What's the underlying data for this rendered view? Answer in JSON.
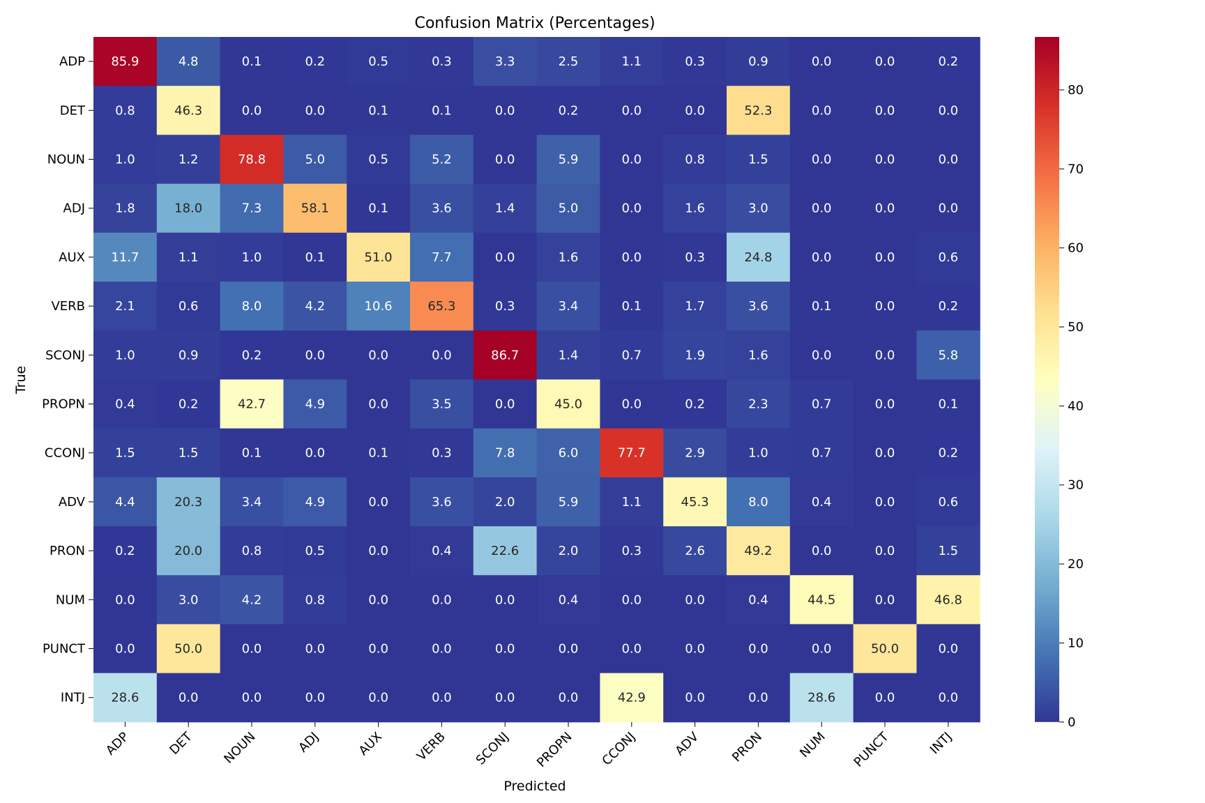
{
  "chart_data": {
    "type": "heatmap",
    "title": "Confusion Matrix (Percentages)",
    "xlabel": "Predicted",
    "ylabel": "True",
    "x_categories": [
      "ADP",
      "DET",
      "NOUN",
      "ADJ",
      "AUX",
      "VERB",
      "SCONJ",
      "PROPN",
      "CCONJ",
      "ADV",
      "PRON",
      "NUM",
      "PUNCT",
      "INTJ"
    ],
    "y_categories": [
      "ADP",
      "DET",
      "NOUN",
      "ADJ",
      "AUX",
      "VERB",
      "SCONJ",
      "PROPN",
      "CCONJ",
      "ADV",
      "PRON",
      "NUM",
      "PUNCT",
      "INTJ"
    ],
    "values": [
      [
        85.9,
        4.8,
        0.1,
        0.2,
        0.5,
        0.3,
        3.3,
        2.5,
        1.1,
        0.3,
        0.9,
        0.0,
        0.0,
        0.2
      ],
      [
        0.8,
        46.3,
        0.0,
        0.0,
        0.1,
        0.1,
        0.0,
        0.2,
        0.0,
        0.0,
        52.3,
        0.0,
        0.0,
        0.0
      ],
      [
        1.0,
        1.2,
        78.8,
        5.0,
        0.5,
        5.2,
        0.0,
        5.9,
        0.0,
        0.8,
        1.5,
        0.0,
        0.0,
        0.0
      ],
      [
        1.8,
        18.0,
        7.3,
        58.1,
        0.1,
        3.6,
        1.4,
        5.0,
        0.0,
        1.6,
        3.0,
        0.0,
        0.0,
        0.0
      ],
      [
        11.7,
        1.1,
        1.0,
        0.1,
        51.0,
        7.7,
        0.0,
        1.6,
        0.0,
        0.3,
        24.8,
        0.0,
        0.0,
        0.6
      ],
      [
        2.1,
        0.6,
        8.0,
        4.2,
        10.6,
        65.3,
        0.3,
        3.4,
        0.1,
        1.7,
        3.6,
        0.1,
        0.0,
        0.2
      ],
      [
        1.0,
        0.9,
        0.2,
        0.0,
        0.0,
        0.0,
        86.7,
        1.4,
        0.7,
        1.9,
        1.6,
        0.0,
        0.0,
        5.8
      ],
      [
        0.4,
        0.2,
        42.7,
        4.9,
        0.0,
        3.5,
        0.0,
        45.0,
        0.0,
        0.2,
        2.3,
        0.7,
        0.0,
        0.1
      ],
      [
        1.5,
        1.5,
        0.1,
        0.0,
        0.1,
        0.3,
        7.8,
        6.0,
        77.7,
        2.9,
        1.0,
        0.7,
        0.0,
        0.2
      ],
      [
        4.4,
        20.3,
        3.4,
        4.9,
        0.0,
        3.6,
        2.0,
        5.9,
        1.1,
        45.3,
        8.0,
        0.4,
        0.0,
        0.6
      ],
      [
        0.2,
        20.0,
        0.8,
        0.5,
        0.0,
        0.4,
        22.6,
        2.0,
        0.3,
        2.6,
        49.2,
        0.0,
        0.0,
        1.5
      ],
      [
        0.0,
        3.0,
        4.2,
        0.8,
        0.0,
        0.0,
        0.0,
        0.4,
        0.0,
        0.0,
        0.4,
        44.5,
        0.0,
        46.8
      ],
      [
        0.0,
        50.0,
        0.0,
        0.0,
        0.0,
        0.0,
        0.0,
        0.0,
        0.0,
        0.0,
        0.0,
        0.0,
        50.0,
        0.0
      ],
      [
        28.6,
        0.0,
        0.0,
        0.0,
        0.0,
        0.0,
        0.0,
        0.0,
        42.9,
        0.0,
        0.0,
        28.6,
        0.0,
        0.0
      ]
    ],
    "value_format": "0.1f",
    "colormap": "RdYlBu_r",
    "vmin": 0,
    "vmax": 86.7,
    "colorbar": {
      "ticks": [
        0,
        10,
        20,
        30,
        40,
        50,
        60,
        70,
        80
      ],
      "position": "right"
    },
    "grid": false,
    "text_color_light": "#ffffff",
    "text_color_dark": "#262626"
  }
}
